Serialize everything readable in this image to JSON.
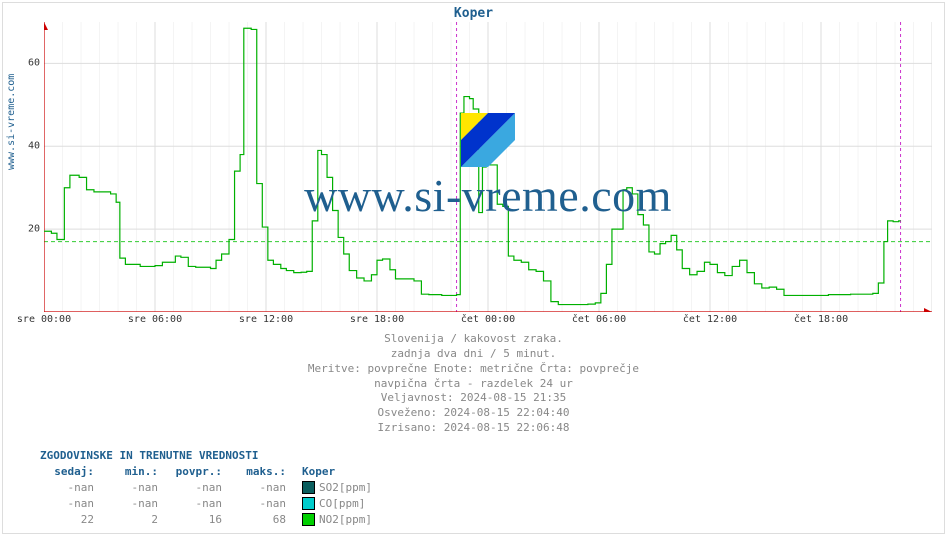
{
  "title": "Koper",
  "yaxis_side_label": "www.si-vreme.com",
  "watermark_text": "www.si-vreme.com",
  "watermark_logo_colors": {
    "left": "#ffe600",
    "right": "#3aa8e0",
    "bottom": "#0033cc"
  },
  "border_color": "#dddddd",
  "chart": {
    "type": "line",
    "background_color": "#ffffff",
    "axis_color": "#cc0000",
    "grid_major_color": "#dddddd",
    "grid_minor_color": "#e8e8e8",
    "ylim": [
      0,
      70
    ],
    "yticks": [
      20,
      40,
      60
    ],
    "ytick_fontsize": 10,
    "xlim_hours": [
      0,
      48
    ],
    "xticks_hours": [
      0,
      6,
      12,
      18,
      24,
      30,
      36,
      42,
      48
    ],
    "xtick_labels": [
      "sre 00:00",
      "sre 06:00",
      "sre 12:00",
      "sre 18:00",
      "čet 00:00",
      "čet 06:00",
      "čet 12:00",
      "čet 18:00",
      ""
    ],
    "xtick_fontsize": 10,
    "day_divider_hour": 22.3,
    "day_divider_color": "#cc33cc",
    "day_divider_dash": "3,3",
    "now_marker_hour": 46.3,
    "now_marker_color": "#cc33cc",
    "now_marker_dash": "3,3",
    "baseline": {
      "color": "#33cc33",
      "dash": "4,3",
      "y": 17
    },
    "series_color": "#00b000",
    "series_width": 1.2,
    "series_points": [
      [
        0.0,
        19.5
      ],
      [
        0.4,
        19.0
      ],
      [
        0.7,
        17.5
      ],
      [
        1.1,
        30.0
      ],
      [
        1.4,
        33.0
      ],
      [
        1.6,
        33.0
      ],
      [
        1.9,
        32.5
      ],
      [
        2.3,
        29.5
      ],
      [
        2.7,
        29.0
      ],
      [
        3.2,
        29.0
      ],
      [
        3.6,
        28.5
      ],
      [
        3.9,
        26.5
      ],
      [
        4.1,
        13.0
      ],
      [
        4.4,
        11.5
      ],
      [
        4.8,
        11.5
      ],
      [
        5.2,
        11.0
      ],
      [
        5.6,
        11.0
      ],
      [
        6.0,
        11.2
      ],
      [
        6.4,
        12.0
      ],
      [
        6.8,
        12.0
      ],
      [
        7.1,
        13.5
      ],
      [
        7.4,
        13.2
      ],
      [
        7.8,
        11.0
      ],
      [
        8.2,
        10.8
      ],
      [
        8.6,
        10.8
      ],
      [
        9.0,
        10.5
      ],
      [
        9.3,
        12.5
      ],
      [
        9.6,
        14.0
      ],
      [
        10.0,
        17.5
      ],
      [
        10.3,
        34.0
      ],
      [
        10.6,
        38.0
      ],
      [
        10.8,
        68.5
      ],
      [
        11.0,
        68.5
      ],
      [
        11.2,
        68.2
      ],
      [
        11.5,
        31.0
      ],
      [
        11.8,
        20.5
      ],
      [
        12.1,
        12.5
      ],
      [
        12.4,
        11.5
      ],
      [
        12.8,
        10.5
      ],
      [
        13.1,
        10.0
      ],
      [
        13.5,
        9.5
      ],
      [
        13.9,
        9.6
      ],
      [
        14.2,
        9.8
      ],
      [
        14.5,
        22.0
      ],
      [
        14.8,
        39.0
      ],
      [
        15.0,
        38.0
      ],
      [
        15.3,
        32.5
      ],
      [
        15.6,
        24.5
      ],
      [
        15.9,
        18.0
      ],
      [
        16.2,
        14.0
      ],
      [
        16.5,
        10.0
      ],
      [
        16.9,
        8.2
      ],
      [
        17.3,
        7.5
      ],
      [
        17.7,
        9.0
      ],
      [
        18.0,
        12.5
      ],
      [
        18.3,
        12.8
      ],
      [
        18.7,
        10.2
      ],
      [
        19.0,
        8.0
      ],
      [
        19.3,
        8.0
      ],
      [
        19.7,
        8.0
      ],
      [
        20.0,
        7.5
      ],
      [
        20.4,
        4.3
      ],
      [
        20.8,
        4.2
      ],
      [
        21.2,
        4.2
      ],
      [
        21.5,
        4.0
      ],
      [
        21.9,
        4.0
      ],
      [
        22.2,
        4.0
      ],
      [
        22.3,
        4.2
      ],
      [
        22.5,
        48.0
      ],
      [
        22.7,
        52.0
      ],
      [
        23.0,
        51.5
      ],
      [
        23.2,
        49.0
      ],
      [
        23.5,
        24.0
      ],
      [
        23.7,
        35.0
      ],
      [
        23.9,
        35.5
      ],
      [
        24.2,
        35.5
      ],
      [
        24.5,
        26.0
      ],
      [
        24.8,
        25.5
      ],
      [
        25.1,
        13.5
      ],
      [
        25.4,
        12.5
      ],
      [
        25.8,
        12.0
      ],
      [
        26.2,
        10.2
      ],
      [
        26.6,
        9.8
      ],
      [
        27.0,
        7.5
      ],
      [
        27.4,
        2.5
      ],
      [
        27.8,
        1.8
      ],
      [
        28.2,
        1.8
      ],
      [
        28.6,
        1.8
      ],
      [
        29.0,
        1.8
      ],
      [
        29.4,
        1.9
      ],
      [
        29.8,
        2.2
      ],
      [
        30.1,
        4.5
      ],
      [
        30.4,
        11.5
      ],
      [
        30.7,
        20.0
      ],
      [
        31.0,
        20.0
      ],
      [
        31.3,
        29.5
      ],
      [
        31.5,
        30.0
      ],
      [
        31.8,
        28.5
      ],
      [
        32.1,
        23.5
      ],
      [
        32.4,
        21.0
      ],
      [
        32.7,
        14.5
      ],
      [
        33.0,
        14.0
      ],
      [
        33.3,
        16.5
      ],
      [
        33.6,
        17.0
      ],
      [
        33.9,
        18.5
      ],
      [
        34.2,
        15.0
      ],
      [
        34.5,
        10.5
      ],
      [
        34.9,
        9.0
      ],
      [
        35.3,
        9.8
      ],
      [
        35.7,
        12.0
      ],
      [
        36.0,
        11.5
      ],
      [
        36.4,
        9.5
      ],
      [
        36.8,
        8.8
      ],
      [
        37.2,
        11.0
      ],
      [
        37.6,
        12.5
      ],
      [
        38.0,
        9.5
      ],
      [
        38.4,
        6.8
      ],
      [
        38.8,
        5.8
      ],
      [
        39.2,
        6.0
      ],
      [
        39.6,
        5.5
      ],
      [
        40.0,
        4.0
      ],
      [
        40.4,
        4.0
      ],
      [
        40.8,
        4.0
      ],
      [
        41.2,
        4.0
      ],
      [
        41.6,
        4.0
      ],
      [
        42.0,
        4.0
      ],
      [
        42.4,
        4.2
      ],
      [
        42.8,
        4.2
      ],
      [
        43.2,
        4.2
      ],
      [
        43.6,
        4.3
      ],
      [
        44.0,
        4.3
      ],
      [
        44.4,
        4.3
      ],
      [
        44.8,
        4.5
      ],
      [
        45.1,
        7.0
      ],
      [
        45.4,
        17.0
      ],
      [
        45.6,
        22.0
      ],
      [
        45.9,
        21.8
      ],
      [
        46.2,
        22.0
      ],
      [
        46.3,
        22.0
      ]
    ]
  },
  "meta": [
    "Slovenija / kakovost zraka.",
    "zadnja dva dni / 5 minut.",
    "Meritve: povprečne  Enote: metrične  Črta: povprečje",
    "navpična črta - razdelek 24 ur",
    "Veljavnost: 2024-08-15 21:35",
    "Osveženo: 2024-08-15 22:04:40",
    "Izrisano: 2024-08-15 22:06:48"
  ],
  "values_table": {
    "header": "ZGODOVINSKE IN TRENUTNE VREDNOSTI",
    "columns": [
      "sedaj:",
      "min.:",
      "povpr.:",
      "maks.:",
      "Koper"
    ],
    "rows": [
      {
        "cells": [
          "-nan",
          "-nan",
          "-nan",
          "-nan"
        ],
        "swatch": "#0a5e5e",
        "label": "SO2[ppm]"
      },
      {
        "cells": [
          "-nan",
          "-nan",
          "-nan",
          "-nan"
        ],
        "swatch": "#00cccc",
        "label": "CO[ppm]"
      },
      {
        "cells": [
          "22",
          "2",
          "16",
          "68"
        ],
        "swatch": "#00d000",
        "label": "NO2[ppm]"
      }
    ]
  }
}
